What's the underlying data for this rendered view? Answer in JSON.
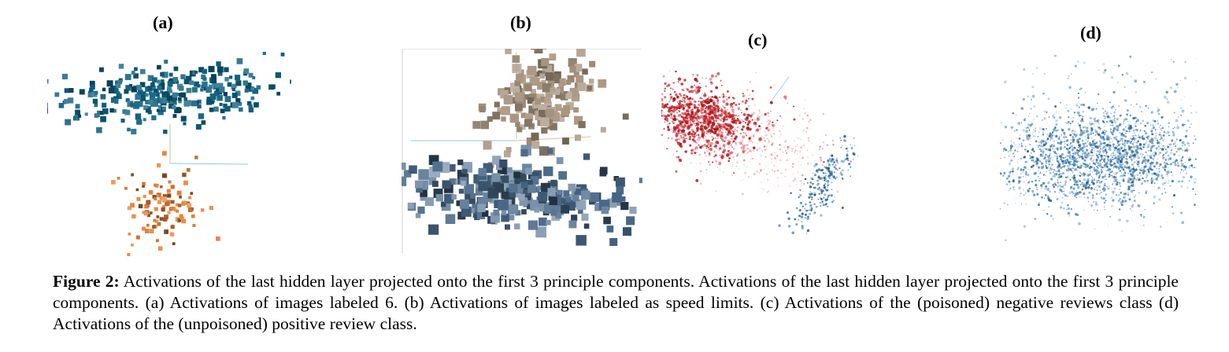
{
  "panels": {
    "a": {
      "label": "(a)"
    },
    "b": {
      "label": "(b)"
    },
    "c": {
      "label": "(c)"
    },
    "d": {
      "label": "(d)"
    }
  },
  "caption": {
    "prefix": "Figure 2:",
    "text": "Activations of the last hidden layer projected onto the first 3 principle components. Activations of the last hidden layer projected onto the first 3 principle components. (a) Activations of images labeled 6. (b) Activations of images labeled as speed limits. (c) Activations of the (poisoned) negative reviews class (d) Activations of the (unpoisoned) positive review class."
  },
  "colors": {
    "cluster_teal": "#0e5f7e",
    "cluster_orange": "#e8843a",
    "cluster_tan": "#a89580",
    "cluster_slate": "#4a6a8a",
    "cluster_red": "#c0141c",
    "cluster_blue": "#1f6aa8"
  }
}
